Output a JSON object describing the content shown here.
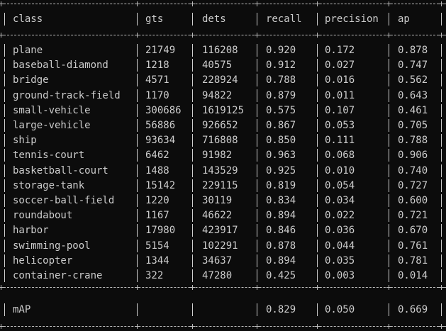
{
  "table": {
    "headers": [
      "class",
      "gts",
      "dets",
      "recall",
      "precision",
      "ap"
    ],
    "rows": [
      [
        "plane",
        "21749",
        "116208",
        "0.920",
        "0.172",
        "0.878"
      ],
      [
        "baseball-diamond",
        "1218",
        "40575",
        "0.912",
        "0.027",
        "0.747"
      ],
      [
        "bridge",
        "4571",
        "228924",
        "0.788",
        "0.016",
        "0.562"
      ],
      [
        "ground-track-field",
        "1170",
        "94822",
        "0.879",
        "0.011",
        "0.643"
      ],
      [
        "small-vehicle",
        "300686",
        "1619125",
        "0.575",
        "0.107",
        "0.461"
      ],
      [
        "large-vehicle",
        "56886",
        "926652",
        "0.867",
        "0.053",
        "0.705"
      ],
      [
        "ship",
        "93634",
        "716808",
        "0.850",
        "0.111",
        "0.788"
      ],
      [
        "tennis-court",
        "6462",
        "91982",
        "0.963",
        "0.068",
        "0.906"
      ],
      [
        "basketball-court",
        "1488",
        "143529",
        "0.925",
        "0.010",
        "0.740"
      ],
      [
        "storage-tank",
        "15142",
        "229115",
        "0.819",
        "0.054",
        "0.727"
      ],
      [
        "soccer-ball-field",
        "1220",
        "30119",
        "0.834",
        "0.034",
        "0.600"
      ],
      [
        "roundabout",
        "1167",
        "46622",
        "0.894",
        "0.022",
        "0.721"
      ],
      [
        "harbor",
        "17980",
        "423917",
        "0.846",
        "0.036",
        "0.670"
      ],
      [
        "swimming-pool",
        "5154",
        "102291",
        "0.878",
        "0.044",
        "0.761"
      ],
      [
        "helicopter",
        "1344",
        "34637",
        "0.894",
        "0.035",
        "0.781"
      ],
      [
        "container-crane",
        "322",
        "47280",
        "0.425",
        "0.003",
        "0.014"
      ]
    ],
    "summary": [
      "mAP",
      "",
      "",
      "0.829",
      "0.050",
      "0.669"
    ]
  }
}
